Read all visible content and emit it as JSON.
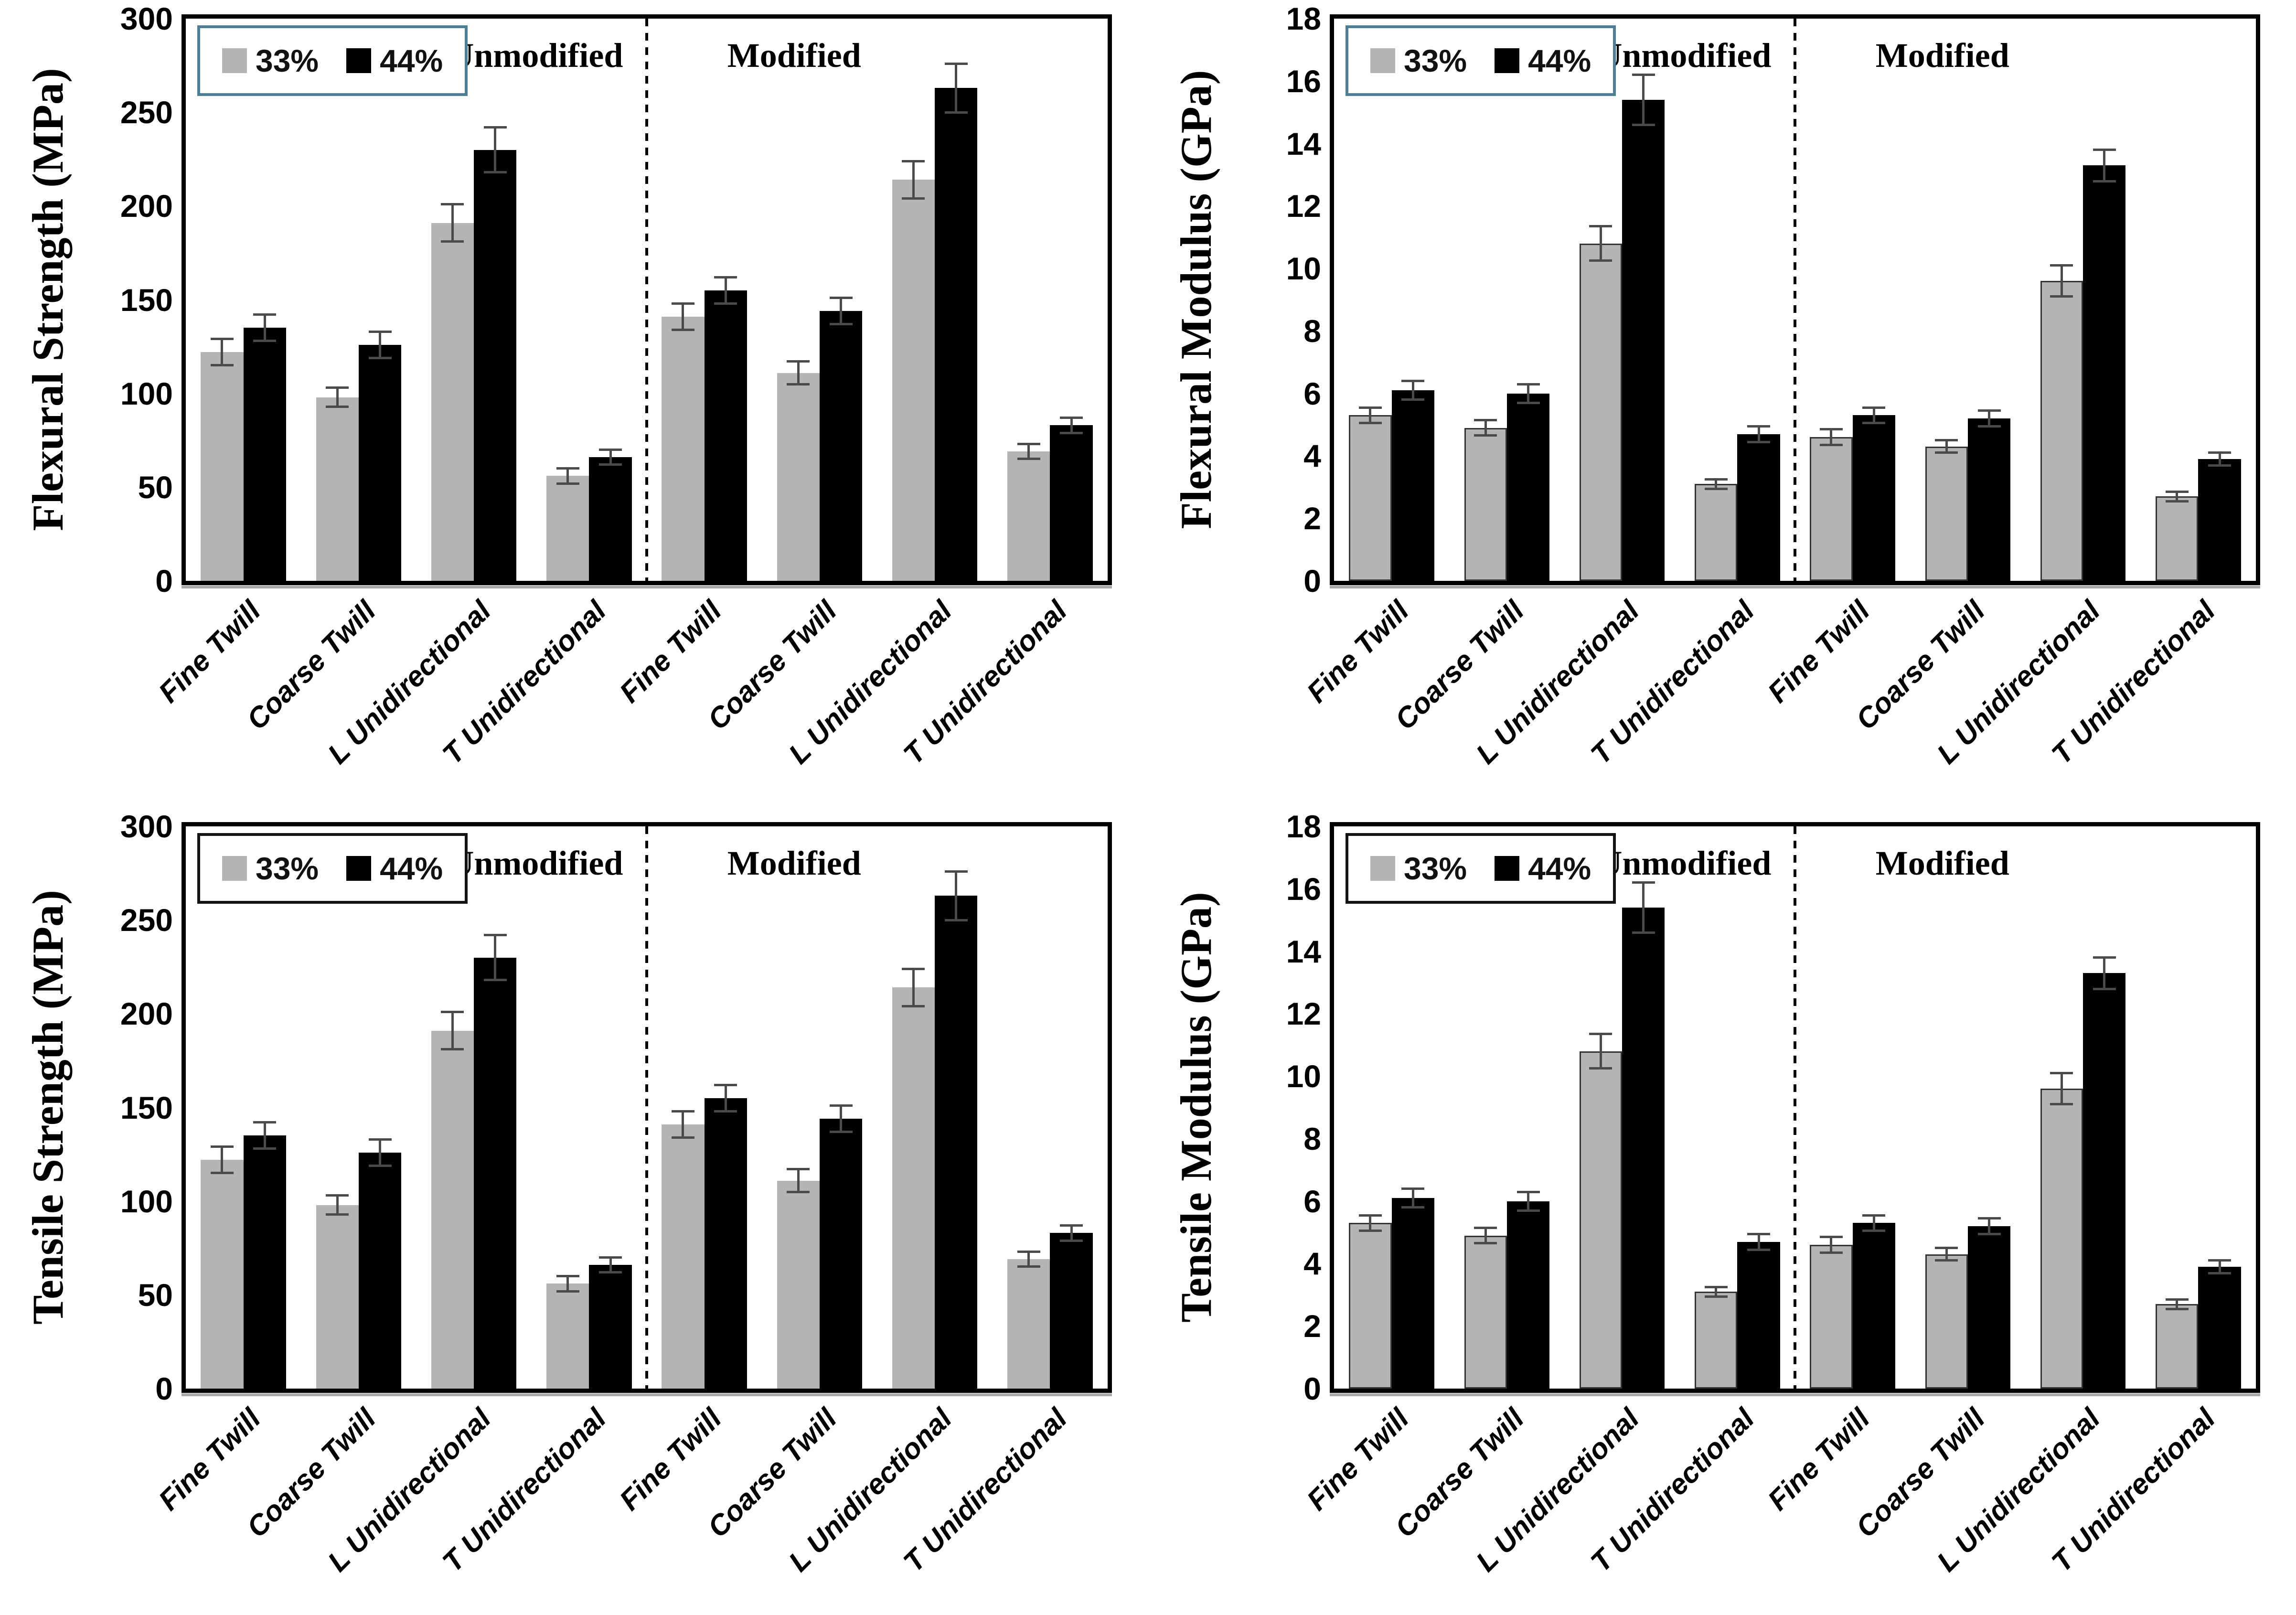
{
  "figure": {
    "background": "#ffffff",
    "bar_color_33": "#b4b4b4",
    "bar_color_44": "#000000",
    "error_bar_color": "#4a4a4a"
  },
  "sections": {
    "unmodified": "Unmodified",
    "modified": "Modified"
  },
  "chart_data": [
    {
      "type": "bar",
      "ylabel": "Flexural Strength (MPa)",
      "ylim": [
        0,
        300
      ],
      "yticks": [
        0,
        50,
        100,
        150,
        200,
        250,
        300
      ],
      "grid": false,
      "legend_position": "top-left-inside",
      "legend_border": "#4e7f96",
      "bar_outline": false,
      "section_labels": [
        "Unmodified",
        "Modified"
      ],
      "categories": [
        "Fine Twill",
        "Coarse Twill",
        "L Unidirectional",
        "T Unidirectional",
        "Fine Twill",
        "Coarse Twill",
        "L Unidirectional",
        "T Unidirectional"
      ],
      "series": [
        {
          "name": "33%",
          "color": "#b4b4b4",
          "values": [
            122,
            98,
            191,
            56,
            141,
            111,
            214,
            69
          ],
          "errors": [
            7,
            5,
            10,
            4,
            7,
            6,
            10,
            4
          ]
        },
        {
          "name": "44%",
          "color": "#000000",
          "values": [
            135,
            126,
            230,
            66,
            155,
            144,
            263,
            83
          ],
          "errors": [
            7,
            7,
            12,
            4,
            7,
            7,
            13,
            4
          ]
        }
      ]
    },
    {
      "type": "bar",
      "ylabel": "Flexural Modulus (GPa)",
      "ylim": [
        0,
        18
      ],
      "yticks": [
        0,
        2,
        4,
        6,
        8,
        10,
        12,
        14,
        16,
        18
      ],
      "grid": false,
      "legend_position": "top-left-inside",
      "legend_border": "#4e7f96",
      "bar_outline": true,
      "section_labels": [
        "Unmodified",
        "Modified"
      ],
      "categories": [
        "Fine Twill",
        "Coarse Twill",
        "L Unidirectional",
        "T Unidirectional",
        "Fine Twill",
        "Coarse Twill",
        "L Unidirectional",
        "T Unidirectional"
      ],
      "series": [
        {
          "name": "33%",
          "color": "#b4b4b4",
          "values": [
            5.3,
            4.9,
            10.8,
            3.1,
            4.6,
            4.3,
            9.6,
            2.7
          ],
          "errors": [
            0.25,
            0.25,
            0.55,
            0.15,
            0.25,
            0.2,
            0.5,
            0.15
          ]
        },
        {
          "name": "44%",
          "color": "#000000",
          "values": [
            6.1,
            6.0,
            15.4,
            4.7,
            5.3,
            5.2,
            13.3,
            3.9
          ],
          "errors": [
            0.3,
            0.3,
            0.8,
            0.25,
            0.25,
            0.25,
            0.5,
            0.2
          ]
        }
      ]
    },
    {
      "type": "bar",
      "ylabel": "Tensile Strength (MPa)",
      "ylim": [
        0,
        300
      ],
      "yticks": [
        0,
        50,
        100,
        150,
        200,
        250,
        300
      ],
      "grid": false,
      "legend_position": "top-left-inside",
      "legend_border": "#141414",
      "bar_outline": false,
      "section_labels": [
        "Unmodified",
        "Modified"
      ],
      "categories": [
        "Fine Twill",
        "Coarse Twill",
        "L Unidirectional",
        "T Unidirectional",
        "Fine Twill",
        "Coarse Twill",
        "L Unidirectional",
        "T Unidirectional"
      ],
      "series": [
        {
          "name": "33%",
          "color": "#b4b4b4",
          "values": [
            122,
            98,
            191,
            56,
            141,
            111,
            214,
            69
          ],
          "errors": [
            7,
            5,
            10,
            4,
            7,
            6,
            10,
            4
          ]
        },
        {
          "name": "44%",
          "color": "#000000",
          "values": [
            135,
            126,
            230,
            66,
            155,
            144,
            263,
            83
          ],
          "errors": [
            7,
            7,
            12,
            4,
            7,
            7,
            13,
            4
          ]
        }
      ]
    },
    {
      "type": "bar",
      "ylabel": "Tensile Modulus (GPa)",
      "ylim": [
        0,
        18
      ],
      "yticks": [
        0,
        2,
        4,
        6,
        8,
        10,
        12,
        14,
        16,
        18
      ],
      "grid": false,
      "legend_position": "top-left-inside",
      "legend_border": "#141414",
      "bar_outline": true,
      "section_labels": [
        "Unmodified",
        "Modified"
      ],
      "categories": [
        "Fine Twill",
        "Coarse Twill",
        "L Unidirectional",
        "T Unidirectional",
        "Fine Twill",
        "Coarse Twill",
        "L Unidirectional",
        "T Unidirectional"
      ],
      "series": [
        {
          "name": "33%",
          "color": "#b4b4b4",
          "values": [
            5.3,
            4.9,
            10.8,
            3.1,
            4.6,
            4.3,
            9.6,
            2.7
          ],
          "errors": [
            0.25,
            0.25,
            0.55,
            0.15,
            0.25,
            0.2,
            0.5,
            0.15
          ]
        },
        {
          "name": "44%",
          "color": "#000000",
          "values": [
            6.1,
            6.0,
            15.4,
            4.7,
            5.3,
            5.2,
            13.3,
            3.9
          ],
          "errors": [
            0.3,
            0.3,
            0.8,
            0.25,
            0.25,
            0.25,
            0.5,
            0.2
          ]
        }
      ]
    }
  ]
}
